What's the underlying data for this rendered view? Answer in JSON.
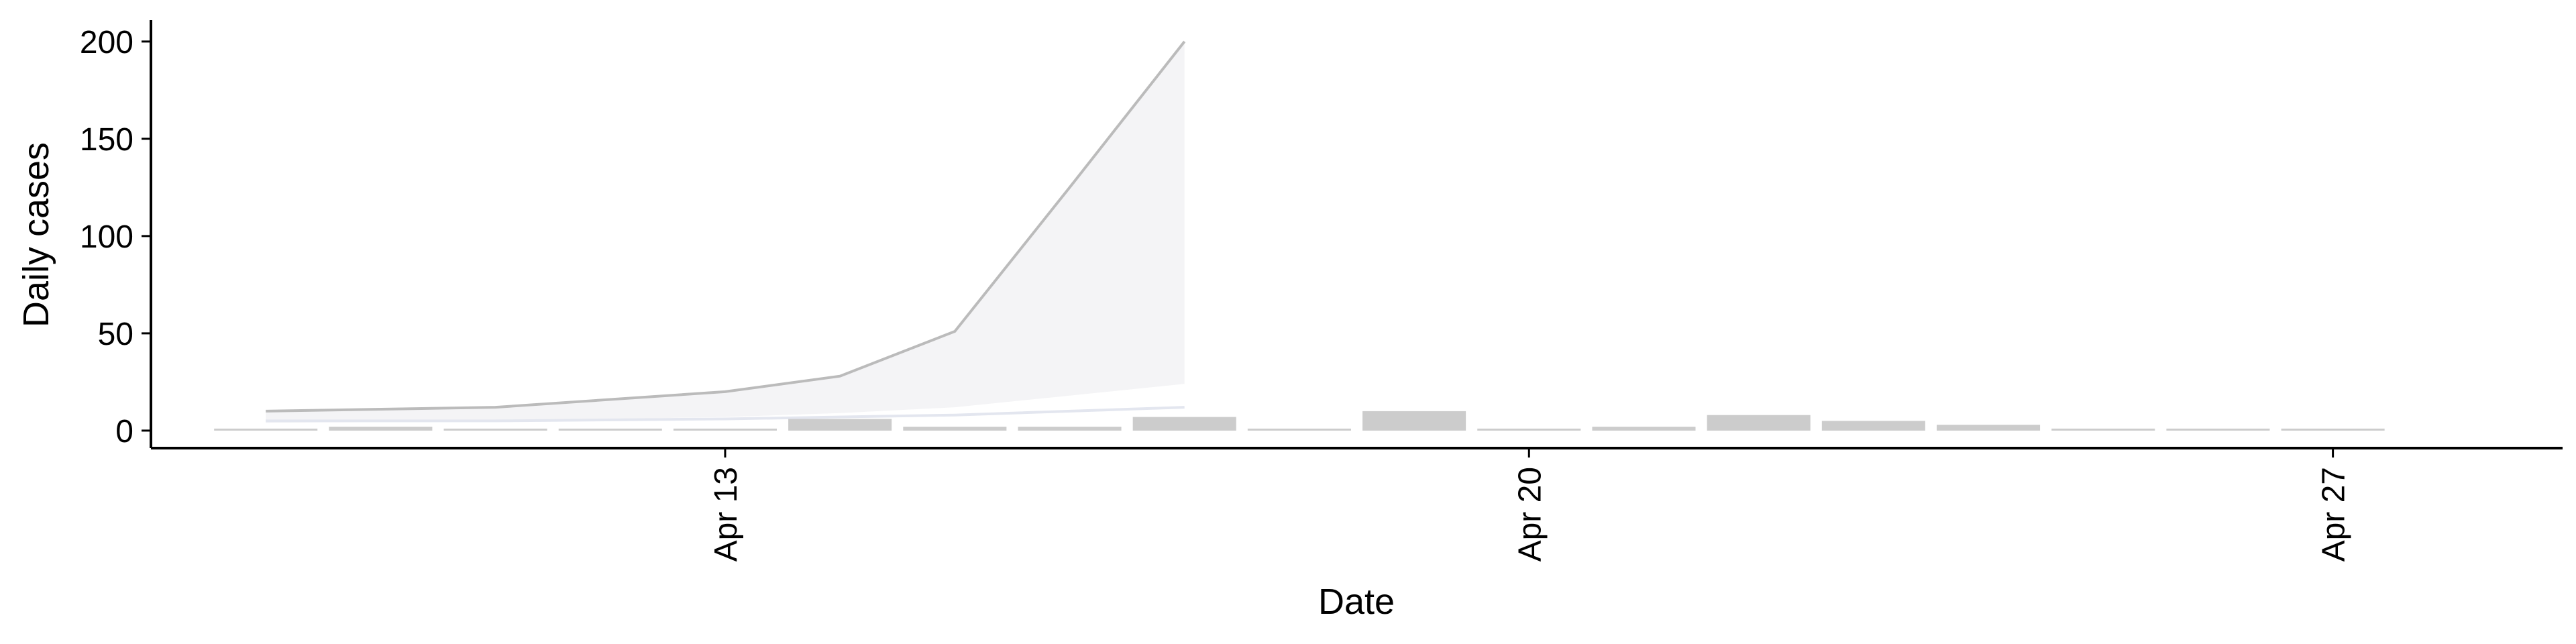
{
  "chart_data": {
    "type": "bar",
    "xlabel": "Date",
    "ylabel": "Daily cases",
    "x_ticks": [
      "Apr 13",
      "Apr 20",
      "Apr 27"
    ],
    "x_tick_dates": [
      "2020-04-13",
      "2020-04-20",
      "2020-04-27"
    ],
    "y_ticks": [
      0,
      50,
      100,
      150,
      200
    ],
    "xlim": [
      "2020-04-08",
      "2020-04-29"
    ],
    "ylim": [
      -9,
      211
    ],
    "grid": false,
    "legend": "none",
    "bars": {
      "dates": [
        "2020-04-09",
        "2020-04-10",
        "2020-04-11",
        "2020-04-12",
        "2020-04-13",
        "2020-04-14",
        "2020-04-15",
        "2020-04-16",
        "2020-04-17",
        "2020-04-18",
        "2020-04-19",
        "2020-04-20",
        "2020-04-21",
        "2020-04-22",
        "2020-04-23",
        "2020-04-24",
        "2020-04-25",
        "2020-04-26",
        "2020-04-27"
      ],
      "values": [
        1,
        2,
        1,
        1,
        1,
        6,
        2,
        2,
        7,
        0,
        10,
        0,
        2,
        8,
        5,
        3,
        0,
        0,
        0
      ],
      "color": "#cccccc"
    },
    "projection": {
      "dates": [
        "2020-04-09",
        "2020-04-11",
        "2020-04-13",
        "2020-04-14",
        "2020-04-15",
        "2020-04-16",
        "2020-04-17"
      ],
      "median": [
        10,
        12,
        20,
        28,
        51,
        125,
        200
      ],
      "upper": [
        10,
        12,
        20,
        28,
        51,
        125,
        200
      ],
      "lower": [
        4,
        5,
        7,
        9,
        12,
        18,
        24
      ],
      "line_color": "#bbbbbb",
      "fill_color": "#f4f4f6"
    },
    "secondary_line": {
      "dates": [
        "2020-04-09",
        "2020-04-11",
        "2020-04-13",
        "2020-04-15",
        "2020-04-17"
      ],
      "values": [
        5,
        5,
        6,
        8,
        12
      ],
      "color": "#e3e6ef"
    }
  }
}
